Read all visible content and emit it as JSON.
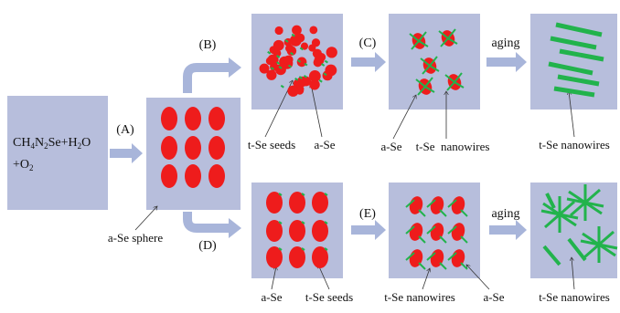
{
  "reactant": {
    "line1": [
      "CH",
      "4",
      "N",
      "2",
      "Se+H",
      "2",
      "O"
    ],
    "line2": [
      "+O",
      "2"
    ]
  },
  "steps": {
    "A": "(A)",
    "B": "(B)",
    "C": "(C)",
    "D": "(D)",
    "E": "(E)",
    "aging_top": "aging",
    "aging_bottom": "aging"
  },
  "labels": {
    "sphere": "a-Se sphere",
    "top": [
      "t-Se seeds",
      "a-Se",
      "a-Se",
      "t-Se  nanowires",
      "t-Se nanowires"
    ],
    "bottom": [
      "a-Se",
      "t-Se seeds",
      "t-Se nanowires",
      "a-Se",
      "t-Se nanowires"
    ]
  }
}
